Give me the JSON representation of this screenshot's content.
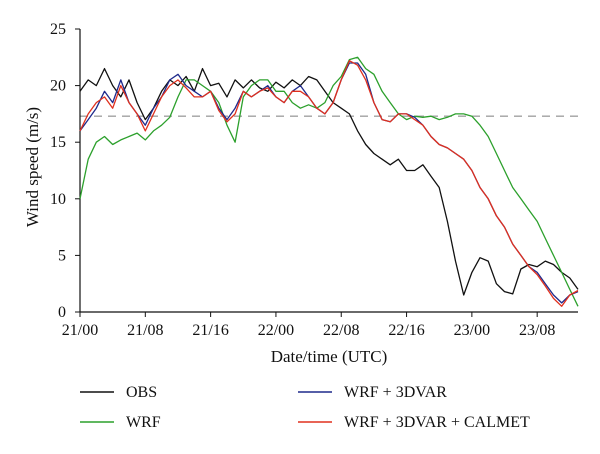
{
  "chart_data": {
    "type": "line",
    "xlabel": "Date/time (UTC)",
    "ylabel": "Wind speed (m/s)",
    "xlim": [
      0,
      61
    ],
    "ylim": [
      0,
      25
    ],
    "x_ticks": [
      {
        "value": 0,
        "label": "21/00"
      },
      {
        "value": 8,
        "label": "21/08"
      },
      {
        "value": 16,
        "label": "21/16"
      },
      {
        "value": 24,
        "label": "22/00"
      },
      {
        "value": 32,
        "label": "22/08"
      },
      {
        "value": 40,
        "label": "22/16"
      },
      {
        "value": 48,
        "label": "23/00"
      },
      {
        "value": 56,
        "label": "23/08"
      }
    ],
    "y_ticks": [
      0,
      5,
      10,
      15,
      20,
      25
    ],
    "reference_line": {
      "y": 17.3,
      "style": "dashed",
      "color": "#a0a0a0"
    },
    "legend_position": "bottom",
    "series": [
      {
        "name": "OBS",
        "color": "#111111",
        "x": [
          0,
          1,
          2,
          3,
          4,
          5,
          6,
          7,
          8,
          9,
          10,
          11,
          12,
          13,
          14,
          15,
          16,
          17,
          18,
          19,
          20,
          21,
          22,
          23,
          24,
          25,
          26,
          27,
          28,
          29,
          30,
          31,
          32,
          33,
          34,
          35,
          36,
          37,
          38,
          39,
          40,
          41,
          42,
          43,
          44,
          45,
          46,
          47,
          48,
          49,
          50,
          51,
          52,
          53,
          54,
          55,
          56,
          57,
          58,
          59,
          60,
          61
        ],
        "y": [
          19.5,
          20.5,
          20.0,
          21.5,
          20.0,
          19.0,
          20.5,
          18.5,
          17.0,
          18.0,
          19.5,
          20.5,
          20.0,
          20.8,
          19.5,
          21.5,
          20.0,
          20.2,
          19.0,
          20.5,
          19.8,
          20.5,
          19.8,
          19.5,
          20.3,
          19.8,
          20.5,
          20.0,
          20.8,
          20.5,
          19.5,
          18.5,
          18.0,
          17.5,
          16.0,
          14.8,
          14.0,
          13.5,
          13.0,
          13.5,
          12.5,
          12.5,
          13.0,
          12.0,
          11.0,
          8.0,
          4.5,
          1.5,
          3.5,
          4.8,
          4.5,
          2.5,
          1.8,
          1.6,
          3.8,
          4.2,
          4.0,
          4.5,
          4.2,
          3.5,
          3.0,
          2.0
        ]
      },
      {
        "name": "WRF",
        "color": "#2ca02c",
        "x": [
          0,
          1,
          2,
          3,
          4,
          5,
          6,
          7,
          8,
          9,
          10,
          11,
          12,
          13,
          14,
          15,
          16,
          17,
          18,
          19,
          20,
          21,
          22,
          23,
          24,
          25,
          26,
          27,
          28,
          29,
          30,
          31,
          32,
          33,
          34,
          35,
          36,
          37,
          38,
          39,
          40,
          41,
          42,
          43,
          44,
          45,
          46,
          47,
          48,
          49,
          50,
          51,
          52,
          53,
          54,
          55,
          56,
          57,
          58,
          59,
          60,
          61
        ],
        "y": [
          10.0,
          13.5,
          15.0,
          15.5,
          14.8,
          15.2,
          15.5,
          15.8,
          15.2,
          16.0,
          16.5,
          17.2,
          19.0,
          20.5,
          20.5,
          20.0,
          19.5,
          18.5,
          16.5,
          15.0,
          19.0,
          20.0,
          20.5,
          20.5,
          19.5,
          19.5,
          18.5,
          18.0,
          18.3,
          18.0,
          18.5,
          20.0,
          20.8,
          22.3,
          22.5,
          21.5,
          21.0,
          19.5,
          18.5,
          17.5,
          17.0,
          17.3,
          17.2,
          17.3,
          17.0,
          17.2,
          17.5,
          17.5,
          17.3,
          16.5,
          15.5,
          14.0,
          12.5,
          11.0,
          10.0,
          9.0,
          8.0,
          6.5,
          5.0,
          3.5,
          2.0,
          0.5
        ]
      },
      {
        "name": "WRF + 3DVAR",
        "color": "#1f2a8c",
        "x": [
          0,
          1,
          2,
          3,
          4,
          5,
          6,
          7,
          8,
          9,
          10,
          11,
          12,
          13,
          14,
          15,
          16,
          17,
          18,
          19,
          20,
          21,
          22,
          23,
          24,
          25,
          26,
          27,
          28,
          29,
          30,
          31,
          32,
          33,
          34,
          35,
          36,
          37,
          38,
          39,
          40,
          41,
          42,
          43,
          44,
          45,
          46,
          47,
          48,
          49,
          50,
          51,
          52,
          53,
          54,
          55,
          56,
          57,
          58,
          59,
          60,
          61
        ],
        "y": [
          16.0,
          17.0,
          18.0,
          19.5,
          18.5,
          20.5,
          18.5,
          17.5,
          16.5,
          18.0,
          19.0,
          20.5,
          21.0,
          20.0,
          19.5,
          19.0,
          19.5,
          18.0,
          17.0,
          18.0,
          19.5,
          19.0,
          19.5,
          20.0,
          19.0,
          18.5,
          19.5,
          20.0,
          19.0,
          18.0,
          17.5,
          18.5,
          20.5,
          22.0,
          22.0,
          21.0,
          18.5,
          17.0,
          16.8,
          17.5,
          17.5,
          17.2,
          16.5,
          15.5,
          14.8,
          14.5,
          14.0,
          13.5,
          12.5,
          11.0,
          10.0,
          8.5,
          7.5,
          6.0,
          5.0,
          4.0,
          3.5,
          2.5,
          1.5,
          0.8,
          1.5,
          1.8
        ]
      },
      {
        "name": "WRF + 3DVAR + CALMET",
        "color": "#e0301e",
        "x": [
          0,
          1,
          2,
          3,
          4,
          5,
          6,
          7,
          8,
          9,
          10,
          11,
          12,
          13,
          14,
          15,
          16,
          17,
          18,
          19,
          20,
          21,
          22,
          23,
          24,
          25,
          26,
          27,
          28,
          29,
          30,
          31,
          32,
          33,
          34,
          35,
          36,
          37,
          38,
          39,
          40,
          41,
          42,
          43,
          44,
          45,
          46,
          47,
          48,
          49,
          50,
          51,
          52,
          53,
          54,
          55,
          56,
          57,
          58,
          59,
          60,
          61
        ],
        "y": [
          16.0,
          17.5,
          18.5,
          19.0,
          18.0,
          20.0,
          18.5,
          17.5,
          16.0,
          17.5,
          19.0,
          20.0,
          20.5,
          19.8,
          19.0,
          19.0,
          19.5,
          17.8,
          16.8,
          17.5,
          19.5,
          19.0,
          19.5,
          19.8,
          19.0,
          18.5,
          19.5,
          19.5,
          19.0,
          18.0,
          17.5,
          18.5,
          20.5,
          22.2,
          21.8,
          20.5,
          18.5,
          17.0,
          16.8,
          17.5,
          17.5,
          17.0,
          16.5,
          15.5,
          14.8,
          14.5,
          14.0,
          13.5,
          12.5,
          11.0,
          10.0,
          8.5,
          7.5,
          6.0,
          5.0,
          4.0,
          3.3,
          2.3,
          1.2,
          0.5,
          1.5,
          1.9
        ]
      }
    ]
  }
}
